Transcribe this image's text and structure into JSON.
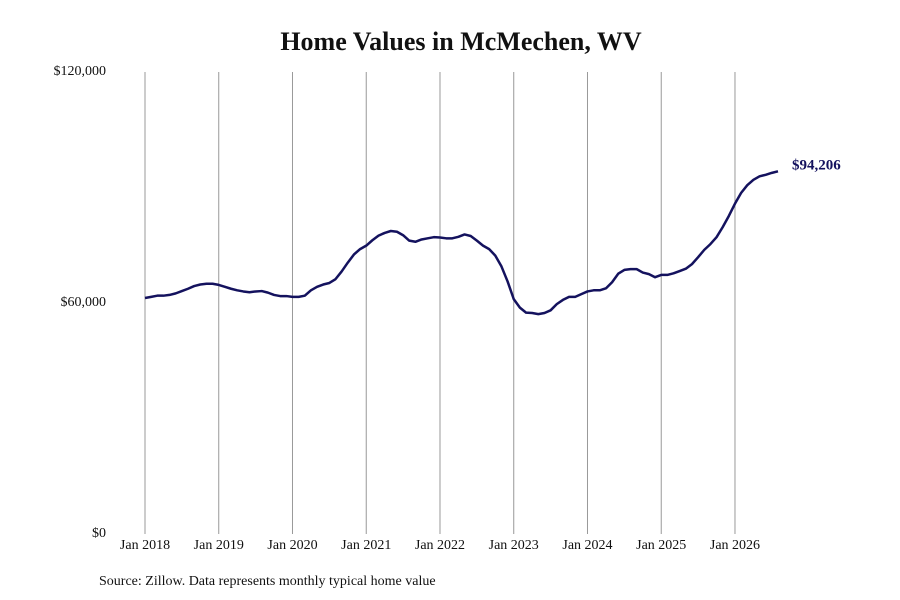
{
  "chart_data": {
    "type": "line",
    "title": "Home Values in McMechen, WV",
    "note": "Source: Zillow. Data represents monthly typical home value",
    "x": [
      "2018-01",
      "2018-02",
      "2018-03",
      "2018-04",
      "2018-05",
      "2018-06",
      "2018-07",
      "2018-08",
      "2018-09",
      "2018-10",
      "2018-11",
      "2018-12",
      "2019-01",
      "2019-02",
      "2019-03",
      "2019-04",
      "2019-05",
      "2019-06",
      "2019-07",
      "2019-08",
      "2019-09",
      "2019-10",
      "2019-11",
      "2019-12",
      "2020-01",
      "2020-02",
      "2020-03",
      "2020-04",
      "2020-05",
      "2020-06",
      "2020-07",
      "2020-08",
      "2020-09",
      "2020-10",
      "2020-11",
      "2020-12",
      "2021-01",
      "2021-02",
      "2021-03",
      "2021-04",
      "2021-05",
      "2021-06",
      "2021-07",
      "2021-08",
      "2021-09",
      "2021-10",
      "2021-11",
      "2021-12",
      "2022-01",
      "2022-02",
      "2022-03",
      "2022-04",
      "2022-05",
      "2022-06",
      "2022-07",
      "2022-08",
      "2022-09",
      "2022-10",
      "2022-11",
      "2022-12",
      "2023-01",
      "2023-02",
      "2023-03",
      "2023-04",
      "2023-05",
      "2023-06",
      "2023-07",
      "2023-08",
      "2023-09",
      "2023-10",
      "2023-11",
      "2023-12",
      "2024-01",
      "2024-02",
      "2024-03",
      "2024-04",
      "2024-05",
      "2024-06",
      "2024-07",
      "2024-08",
      "2024-09",
      "2024-10",
      "2024-11",
      "2024-12",
      "2025-01",
      "2025-02",
      "2025-03",
      "2025-04",
      "2025-05",
      "2025-06",
      "2025-07",
      "2025-08",
      "2025-09",
      "2025-10",
      "2025-11",
      "2025-12",
      "2026-01",
      "2026-02",
      "2026-03",
      "2026-04",
      "2026-05",
      "2026-06",
      "2026-07",
      "2026-08"
    ],
    "series": [
      {
        "name": "Home Values",
        "color": "#14125e",
        "values": [
          61300,
          61600,
          61900,
          61900,
          62100,
          62500,
          63100,
          63700,
          64400,
          64800,
          65000,
          65000,
          64700,
          64200,
          63700,
          63300,
          63000,
          62800,
          63000,
          63100,
          62700,
          62100,
          61800,
          61800,
          61600,
          61600,
          61900,
          63300,
          64200,
          64800,
          65200,
          66200,
          68200,
          70500,
          72600,
          74000,
          74900,
          76300,
          77500,
          78200,
          78700,
          78500,
          77600,
          76200,
          75900,
          76500,
          76800,
          77100,
          77000,
          76800,
          76800,
          77200,
          77800,
          77400,
          76200,
          74900,
          74000,
          72300,
          69500,
          65600,
          61000,
          58800,
          57500,
          57400,
          57100,
          57400,
          58100,
          59700,
          60800,
          61600,
          61600,
          62300,
          63000,
          63300,
          63300,
          63800,
          65400,
          67600,
          68600,
          68800,
          68800,
          67900,
          67500,
          66700,
          67300,
          67300,
          67700,
          68300,
          68900,
          70100,
          71900,
          73800,
          75300,
          77100,
          79700,
          82600,
          85800,
          88600,
          90600,
          92000,
          92900,
          93300,
          93800,
          94206
        ],
        "value_labels": [
          null,
          null,
          null,
          null,
          null,
          null,
          null,
          null,
          null,
          null,
          null,
          null,
          null,
          null,
          null,
          null,
          null,
          null,
          null,
          null,
          null,
          null,
          null,
          null,
          null,
          null,
          null,
          null,
          null,
          null,
          null,
          null,
          null,
          null,
          null,
          null,
          null,
          null,
          null,
          null,
          null,
          null,
          null,
          null,
          null,
          null,
          null,
          null,
          null,
          null,
          null,
          null,
          null,
          null,
          null,
          null,
          null,
          null,
          null,
          null,
          null,
          null,
          null,
          null,
          null,
          null,
          null,
          null,
          null,
          null,
          null,
          null,
          null,
          null,
          null,
          null,
          null,
          null,
          null,
          null,
          null,
          null,
          null,
          null,
          null,
          null,
          null,
          null,
          null,
          null,
          null,
          null,
          null,
          null,
          null,
          null,
          null,
          null,
          null,
          null,
          null,
          null,
          null,
          "$94,206"
        ]
      }
    ],
    "xlim": [
      "2018-01",
      "2026-08"
    ],
    "xticks": [
      {
        "value": "2018-01",
        "label": "Jan 2018"
      },
      {
        "value": "2019-01",
        "label": "Jan 2019"
      },
      {
        "value": "2020-01",
        "label": "Jan 2020"
      },
      {
        "value": "2021-01",
        "label": "Jan 2021"
      },
      {
        "value": "2022-01",
        "label": "Jan 2022"
      },
      {
        "value": "2023-01",
        "label": "Jan 2023"
      },
      {
        "value": "2024-01",
        "label": "Jan 2024"
      },
      {
        "value": "2025-01",
        "label": "Jan 2025"
      },
      {
        "value": "2026-01",
        "label": "Jan 2026"
      }
    ],
    "ylim": [
      0,
      120000
    ],
    "yticks": [
      {
        "value": 0,
        "label": "$0"
      },
      {
        "value": 60000,
        "label": "$60,000"
      },
      {
        "value": 120000,
        "label": "$120,000"
      }
    ],
    "grid": "x"
  }
}
